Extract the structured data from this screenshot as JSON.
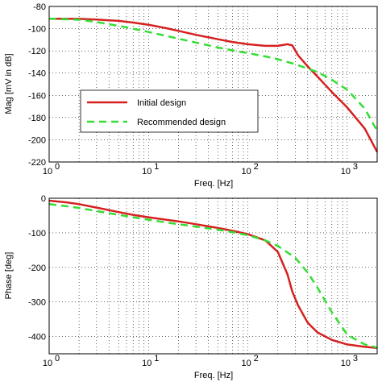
{
  "chart_data": [
    {
      "type": "line",
      "ylabel": "Mag [mV in dB]",
      "xlabel": "Freq. [Hz]",
      "xscale": "log",
      "xlim": [
        1,
        2000
      ],
      "ylim": [
        -220,
        -80
      ],
      "yticks": [
        -80,
        -100,
        -120,
        -140,
        -160,
        -180,
        -200,
        -220
      ],
      "yticklabels": [
        "-80",
        "-100",
        "-120",
        "-140",
        "-160",
        "-180",
        "-200",
        "-220"
      ],
      "xticks": [
        1,
        10,
        100,
        1000
      ],
      "xticklabels": [
        {
          "base": "10",
          "exp": "0"
        },
        {
          "base": "10",
          "exp": "1"
        },
        {
          "base": "10",
          "exp": "2"
        },
        {
          "base": "10",
          "exp": "3"
        }
      ],
      "grid": true,
      "legend_position": "lower-left",
      "series": [
        {
          "name": "Initial design",
          "color": "#d62020",
          "style": "solid",
          "x": [
            1,
            2,
            3,
            5,
            7,
            10,
            15,
            20,
            30,
            50,
            70,
            100,
            150,
            200,
            250,
            280,
            320,
            400,
            500,
            700,
            1000,
            1500,
            2000
          ],
          "y": [
            -91,
            -91.2,
            -91.8,
            -93,
            -94.5,
            -96.5,
            -99.5,
            -102,
            -105.5,
            -109.5,
            -112,
            -114,
            -115.5,
            -115.5,
            -114,
            -115,
            -124,
            -134,
            -143,
            -157,
            -171,
            -190,
            -211
          ]
        },
        {
          "name": "Recommended design",
          "color": "#33dd33",
          "style": "dashed",
          "x": [
            1,
            2,
            3,
            5,
            7,
            10,
            15,
            20,
            30,
            50,
            70,
            100,
            150,
            200,
            300,
            400,
            500,
            700,
            1000,
            1500,
            2000
          ],
          "y": [
            -91,
            -92,
            -94,
            -97.5,
            -100,
            -103,
            -106.5,
            -109,
            -112.5,
            -117,
            -119.5,
            -122,
            -125,
            -127.5,
            -132,
            -136,
            -139,
            -146,
            -155,
            -172,
            -192
          ]
        }
      ]
    },
    {
      "type": "line",
      "ylabel": "Phase [deg]",
      "xlabel": "Freq. [Hz]",
      "xscale": "log",
      "xlim": [
        1,
        2000
      ],
      "ylim": [
        -450,
        0
      ],
      "yticks": [
        0,
        -100,
        -200,
        -300,
        -400
      ],
      "yticklabels": [
        "0",
        "-100",
        "-200",
        "-300",
        "-400"
      ],
      "xticks": [
        1,
        10,
        100,
        1000
      ],
      "xticklabels": [
        {
          "base": "10",
          "exp": "0"
        },
        {
          "base": "10",
          "exp": "1"
        },
        {
          "base": "10",
          "exp": "2"
        },
        {
          "base": "10",
          "exp": "3"
        }
      ],
      "grid": true,
      "series": [
        {
          "name": "Initial design",
          "color": "#d62020",
          "style": "solid",
          "x": [
            1,
            1.5,
            2,
            3,
            5,
            7,
            10,
            15,
            20,
            30,
            50,
            70,
            100,
            150,
            200,
            250,
            280,
            320,
            400,
            500,
            700,
            1000,
            1500,
            2000
          ],
          "y": [
            -7,
            -12,
            -17,
            -27,
            -40,
            -48,
            -55,
            -62,
            -67,
            -75,
            -86,
            -94,
            -104,
            -122,
            -155,
            -220,
            -270,
            -310,
            -360,
            -388,
            -410,
            -423,
            -430,
            -433
          ]
        },
        {
          "name": "Recommended design",
          "color": "#33dd33",
          "style": "dashed",
          "x": [
            1,
            1.5,
            2,
            3,
            5,
            7,
            10,
            15,
            20,
            30,
            50,
            70,
            100,
            150,
            200,
            300,
            400,
            500,
            700,
            1000,
            1500,
            2000
          ],
          "y": [
            -17,
            -23,
            -28,
            -37,
            -48,
            -55,
            -62,
            -70,
            -75,
            -82,
            -91,
            -98,
            -107,
            -122,
            -138,
            -172,
            -215,
            -258,
            -330,
            -395,
            -423,
            -432
          ]
        }
      ]
    }
  ]
}
